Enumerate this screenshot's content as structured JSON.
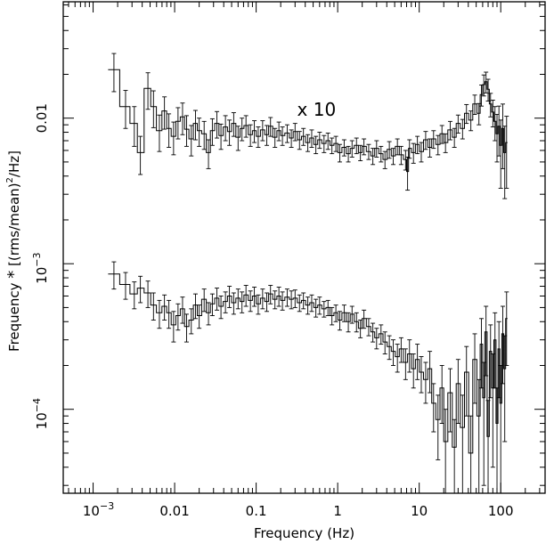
{
  "chart_data": {
    "type": "line",
    "title": "",
    "xlabel": "Frequency (Hz)",
    "ylabel_parts": {
      "pre": "Frequency ",
      "star": "*",
      "mid": " [(rms/mean)",
      "sup": "2",
      "post": "/Hz]"
    },
    "xscale": "log",
    "yscale": "log",
    "xlim": [
      0.00043,
      350
    ],
    "ylim": [
      2.65e-05,
      0.063
    ],
    "grid": false,
    "x_ticks": [
      {
        "value": 0.001,
        "base": "10",
        "exp": "−3"
      },
      {
        "value": 0.01,
        "label": "0.01"
      },
      {
        "value": 0.1,
        "label": "0.1"
      },
      {
        "value": 1,
        "label": "1"
      },
      {
        "value": 10,
        "label": "10"
      },
      {
        "value": 100,
        "label": "100"
      }
    ],
    "y_ticks": [
      {
        "value": 0.0001,
        "base": "10",
        "exp": "−4"
      },
      {
        "value": 0.001,
        "base": "10",
        "exp": "−3"
      },
      {
        "value": 0.01,
        "label": "0.01"
      }
    ],
    "annotation": "x 10",
    "annotation_at": {
      "x": 0.55,
      "y": 0.0104
    },
    "series": [
      {
        "values_xy": [
          [
            0.0018,
            0.0215,
            0.0063
          ],
          [
            0.0025,
            0.012,
            0.0035
          ],
          [
            0.0032,
            0.0092,
            0.0028
          ],
          [
            0.0038,
            0.0058,
            0.0017
          ],
          [
            0.0047,
            0.016,
            0.0045
          ],
          [
            0.0055,
            0.012,
            0.0034
          ],
          [
            0.0065,
            0.0082,
            0.0023
          ],
          [
            0.0075,
            0.0112,
            0.0028
          ],
          [
            0.0085,
            0.0085,
            0.0022
          ],
          [
            0.0097,
            0.0075,
            0.0019
          ],
          [
            0.011,
            0.0095,
            0.0023
          ],
          [
            0.0125,
            0.0102,
            0.0025
          ],
          [
            0.014,
            0.0084,
            0.002
          ],
          [
            0.016,
            0.0072,
            0.0017
          ],
          [
            0.018,
            0.0092,
            0.0021
          ],
          [
            0.02,
            0.0082,
            0.0018
          ],
          [
            0.023,
            0.0078,
            0.0017
          ],
          [
            0.026,
            0.0058,
            0.0013
          ],
          [
            0.029,
            0.0082,
            0.0017
          ],
          [
            0.033,
            0.0092,
            0.0019
          ],
          [
            0.037,
            0.0076,
            0.0015
          ],
          [
            0.042,
            0.0087,
            0.0017
          ],
          [
            0.047,
            0.0081,
            0.0016
          ],
          [
            0.053,
            0.0092,
            0.0017
          ],
          [
            0.06,
            0.0074,
            0.0014
          ],
          [
            0.067,
            0.0085,
            0.0015
          ],
          [
            0.075,
            0.0089,
            0.0015
          ],
          [
            0.085,
            0.0077,
            0.0013
          ],
          [
            0.095,
            0.0082,
            0.0014
          ],
          [
            0.106,
            0.0075,
            0.0012
          ],
          [
            0.12,
            0.0083,
            0.0013
          ],
          [
            0.135,
            0.0077,
            0.0012
          ],
          [
            0.15,
            0.0088,
            0.0013
          ],
          [
            0.17,
            0.0074,
            0.0011
          ],
          [
            0.19,
            0.0082,
            0.0012
          ],
          [
            0.21,
            0.0076,
            0.0011
          ],
          [
            0.24,
            0.0079,
            0.0011
          ],
          [
            0.27,
            0.0073,
            0.001
          ],
          [
            0.3,
            0.0081,
            0.0011
          ],
          [
            0.34,
            0.0071,
            0.001
          ],
          [
            0.38,
            0.0075,
            0.001
          ],
          [
            0.43,
            0.0068,
            0.0009
          ],
          [
            0.48,
            0.0073,
            0.001
          ],
          [
            0.54,
            0.0066,
            0.0009
          ],
          [
            0.6,
            0.0071,
            0.0009
          ],
          [
            0.68,
            0.0067,
            0.0009
          ],
          [
            0.76,
            0.007,
            0.0009
          ],
          [
            0.85,
            0.0065,
            0.0008
          ],
          [
            0.95,
            0.0067,
            0.0008
          ],
          [
            1.06,
            0.0058,
            0.0008
          ],
          [
            1.2,
            0.0063,
            0.0008
          ],
          [
            1.35,
            0.0057,
            0.0007
          ],
          [
            1.5,
            0.0062,
            0.0008
          ],
          [
            1.7,
            0.0065,
            0.0008
          ],
          [
            1.9,
            0.0058,
            0.0007
          ],
          [
            2.1,
            0.0064,
            0.0008
          ],
          [
            2.4,
            0.0059,
            0.0007
          ],
          [
            2.7,
            0.0055,
            0.0007
          ],
          [
            3.0,
            0.0062,
            0.0008
          ],
          [
            3.4,
            0.0057,
            0.0007
          ],
          [
            3.8,
            0.0052,
            0.0007
          ],
          [
            4.3,
            0.0061,
            0.0008
          ],
          [
            4.8,
            0.0055,
            0.0007
          ],
          [
            5.4,
            0.0064,
            0.0008
          ],
          [
            6.0,
            0.0056,
            0.0008
          ],
          [
            6.8,
            0.0052,
            0.0008
          ],
          [
            7.2,
            0.0043,
            0.0011
          ],
          [
            7.6,
            0.0062,
            0.0009
          ],
          [
            8.5,
            0.0058,
            0.0009
          ],
          [
            9.5,
            0.0066,
            0.0009
          ],
          [
            10.6,
            0.0059,
            0.0009
          ],
          [
            12,
            0.0071,
            0.001
          ],
          [
            13.5,
            0.0063,
            0.0009
          ],
          [
            15,
            0.0072,
            0.001
          ],
          [
            17,
            0.0066,
            0.001
          ],
          [
            19,
            0.0078,
            0.0011
          ],
          [
            21,
            0.0068,
            0.001
          ],
          [
            24,
            0.0083,
            0.0012
          ],
          [
            27,
            0.0074,
            0.0011
          ],
          [
            30,
            0.0092,
            0.0013
          ],
          [
            34,
            0.0085,
            0.0013
          ],
          [
            38,
            0.0108,
            0.0016
          ],
          [
            43,
            0.0097,
            0.0015
          ],
          [
            48,
            0.0125,
            0.0019
          ],
          [
            54,
            0.0108,
            0.0018
          ],
          [
            58,
            0.0145,
            0.0024
          ],
          [
            62,
            0.017,
            0.0028
          ],
          [
            66,
            0.0178,
            0.0029
          ],
          [
            70,
            0.0158,
            0.0027
          ],
          [
            75,
            0.0125,
            0.0023
          ],
          [
            80,
            0.011,
            0.0023
          ],
          [
            85,
            0.0095,
            0.0025
          ],
          [
            90,
            0.0078,
            0.0028
          ],
          [
            95,
            0.0088,
            0.0033
          ],
          [
            100,
            0.0065,
            0.0032
          ],
          [
            106,
            0.0085,
            0.004
          ],
          [
            112,
            0.0058,
            0.003
          ],
          [
            118,
            0.0068,
            0.0035
          ]
        ]
      },
      {
        "values_xy": [
          [
            0.0018,
            0.00085,
            0.00018
          ],
          [
            0.0025,
            0.00072,
            0.00015
          ],
          [
            0.0032,
            0.00062,
            0.00013
          ],
          [
            0.0038,
            0.00068,
            0.00014
          ],
          [
            0.0047,
            0.00063,
            0.00013
          ],
          [
            0.0055,
            0.00052,
            0.00011
          ],
          [
            0.0065,
            0.00046,
            0.0001
          ],
          [
            0.0075,
            0.00051,
            0.0001
          ],
          [
            0.0085,
            0.00046,
            0.0001
          ],
          [
            0.0097,
            0.00038,
            9e-05
          ],
          [
            0.011,
            0.00044,
            9e-05
          ],
          [
            0.0125,
            0.00049,
            0.0001
          ],
          [
            0.014,
            0.00037,
            8e-05
          ],
          [
            0.016,
            0.00041,
            8e-05
          ],
          [
            0.018,
            0.00052,
            0.0001
          ],
          [
            0.02,
            0.00044,
            8e-05
          ],
          [
            0.023,
            0.00057,
            0.0001
          ],
          [
            0.026,
            0.00046,
            8e-05
          ],
          [
            0.029,
            0.00053,
            9e-05
          ],
          [
            0.033,
            0.00058,
            0.0001
          ],
          [
            0.037,
            0.00051,
            9e-05
          ],
          [
            0.042,
            0.00055,
            9e-05
          ],
          [
            0.047,
            0.0006,
            0.0001
          ],
          [
            0.053,
            0.00054,
            9e-05
          ],
          [
            0.06,
            0.00058,
            9e-05
          ],
          [
            0.067,
            0.00055,
            9e-05
          ],
          [
            0.075,
            0.00061,
            0.0001
          ],
          [
            0.085,
            0.00056,
            9e-05
          ],
          [
            0.095,
            0.0006,
            9e-05
          ],
          [
            0.106,
            0.00053,
            8e-05
          ],
          [
            0.12,
            0.00058,
            9e-05
          ],
          [
            0.135,
            0.00055,
            8e-05
          ],
          [
            0.15,
            0.00062,
            9e-05
          ],
          [
            0.17,
            0.00057,
            8e-05
          ],
          [
            0.19,
            0.0006,
            9e-05
          ],
          [
            0.21,
            0.00056,
            8e-05
          ],
          [
            0.24,
            0.00059,
            8e-05
          ],
          [
            0.27,
            0.00057,
            8e-05
          ],
          [
            0.3,
            0.00058,
            8e-05
          ],
          [
            0.34,
            0.00054,
            7e-05
          ],
          [
            0.38,
            0.00056,
            7e-05
          ],
          [
            0.43,
            0.00052,
            7e-05
          ],
          [
            0.48,
            0.00054,
            7e-05
          ],
          [
            0.54,
            0.0005,
            7e-05
          ],
          [
            0.6,
            0.00052,
            7e-05
          ],
          [
            0.68,
            0.00049,
            6e-05
          ],
          [
            0.76,
            0.0005,
            6e-05
          ],
          [
            0.85,
            0.00044,
            6e-05
          ],
          [
            0.95,
            0.00046,
            6e-05
          ],
          [
            1.06,
            0.00041,
            6e-05
          ],
          [
            1.2,
            0.00046,
            6e-05
          ],
          [
            1.35,
            0.0004,
            6e-05
          ],
          [
            1.5,
            0.00045,
            6e-05
          ],
          [
            1.7,
            0.0004,
            6e-05
          ],
          [
            1.9,
            0.00036,
            5e-05
          ],
          [
            2.1,
            0.00042,
            6e-05
          ],
          [
            2.4,
            0.00037,
            5e-05
          ],
          [
            2.7,
            0.00034,
            5e-05
          ],
          [
            3.0,
            0.00031,
            5e-05
          ],
          [
            3.4,
            0.00033,
            5e-05
          ],
          [
            3.8,
            0.00029,
            5e-05
          ],
          [
            4.3,
            0.00027,
            5e-05
          ],
          [
            4.8,
            0.00025,
            5e-05
          ],
          [
            5.4,
            0.00023,
            5e-05
          ],
          [
            6.0,
            0.00026,
            5e-05
          ],
          [
            6.8,
            0.00021,
            5e-05
          ],
          [
            7.6,
            0.00024,
            6e-05
          ],
          [
            8.5,
            0.00019,
            5e-05
          ],
          [
            9.5,
            0.00022,
            6e-05
          ],
          [
            10.6,
            0.00018,
            5e-05
          ],
          [
            12,
            0.00016,
            5e-05
          ],
          [
            13.5,
            0.00019,
            6e-05
          ],
          [
            15,
            0.00011,
            4e-05
          ],
          [
            17,
            8.5e-05,
            4e-05
          ],
          [
            19,
            0.00014,
            6e-05
          ],
          [
            21,
            6e-05,
            4e-05
          ],
          [
            24,
            0.00013,
            6e-05
          ],
          [
            27,
            5.5e-05,
            3e-05
          ],
          [
            30,
            0.00015,
            7e-05
          ],
          [
            34,
            7.5e-05,
            5e-05
          ],
          [
            38,
            0.00018,
            9e-05
          ],
          [
            43,
            5e-05,
            4e-05
          ],
          [
            48,
            0.00022,
            0.00011
          ],
          [
            54,
            9e-05,
            7e-05
          ],
          [
            58,
            0.00028,
            0.00014
          ],
          [
            62,
            0.00012,
            9e-05
          ],
          [
            66,
            0.00034,
            0.00017
          ],
          [
            70,
            6.5e-05,
            5e-05
          ],
          [
            75,
            0.00025,
            0.00013
          ],
          [
            80,
            0.00014,
            0.0001
          ],
          [
            85,
            0.0003,
            0.00016
          ],
          [
            90,
            8e-05,
            6e-05
          ],
          [
            95,
            0.00026,
            0.00014
          ],
          [
            100,
            0.00011,
            9e-05
          ],
          [
            106,
            0.00033,
            0.00018
          ],
          [
            112,
            0.00019,
            0.00013
          ],
          [
            118,
            0.00042,
            0.00022
          ]
        ]
      }
    ]
  }
}
